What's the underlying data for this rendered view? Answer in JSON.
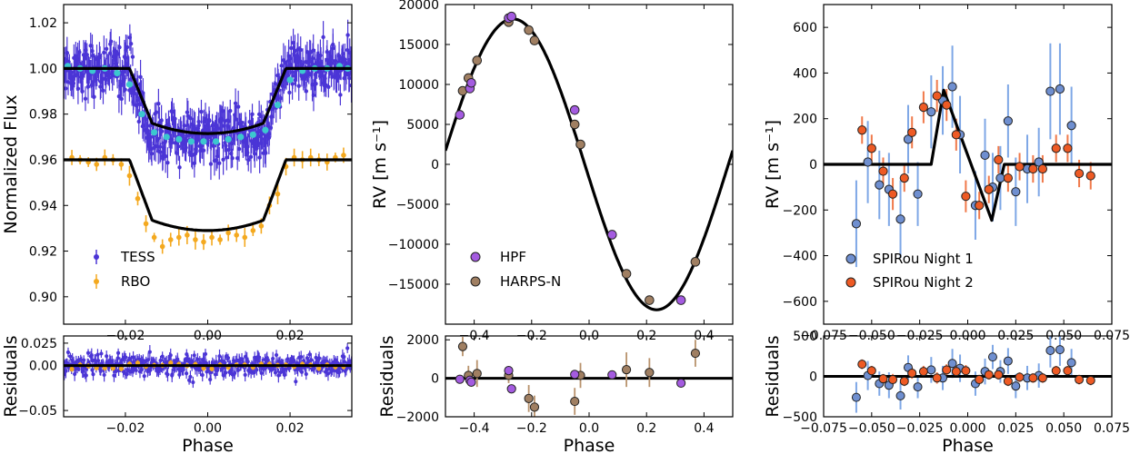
{
  "colors": {
    "tess": "#4b35d6",
    "tess_binned": "#3cc7cf",
    "rbo": "#f4a91f",
    "hpf": "#a45be0",
    "harps": "#a07f62",
    "harps_err": "#b8926c",
    "spirou1": "#6f8fd0",
    "spirou1_err": "#7ea7e6",
    "spirou2": "#ee5a24",
    "spirou2_err": "#f0794a",
    "model": "#000000"
  },
  "chart_data": [
    {
      "id": "transit",
      "type": "scatter",
      "xlabel": "Phase",
      "ylabel": "Normalized Flux",
      "xlim": [
        -0.035,
        0.035
      ],
      "ylim": [
        0.888,
        1.028
      ],
      "xticks": [
        -0.02,
        0.0,
        0.02
      ],
      "xtick_labels": [
        "−0.02",
        "0.00",
        "0.02"
      ],
      "yticks": [
        0.9,
        0.92,
        0.94,
        0.96,
        0.98,
        1.0,
        1.02
      ],
      "ytick_labels": [
        "0.90",
        "0.92",
        "0.94",
        "0.96",
        "0.98",
        "1.00",
        "1.02"
      ],
      "transit_model": {
        "t_out": 0.019,
        "t_in": 0.0135
      },
      "series": [
        {
          "name": "TESS",
          "baseline": 1.0,
          "depth": 0.032
        },
        {
          "name": "RBO",
          "baseline": 0.96,
          "depth": 0.035
        }
      ],
      "tess_binned": {
        "x": [
          -0.034,
          -0.031,
          -0.028,
          -0.025,
          -0.022,
          -0.019,
          -0.016,
          -0.013,
          -0.01,
          -0.007,
          -0.004,
          -0.001,
          0.002,
          0.005,
          0.008,
          0.011,
          0.014,
          0.017,
          0.02,
          0.023,
          0.026,
          0.029,
          0.032,
          0.034
        ],
        "y": [
          1.001,
          1.0,
          0.999,
          1.0,
          0.998,
          0.993,
          0.98,
          0.972,
          0.97,
          0.969,
          0.968,
          0.968,
          0.968,
          0.969,
          0.97,
          0.971,
          0.973,
          0.984,
          0.995,
          0.999,
          1.0,
          1.0,
          1.001,
          1.0
        ]
      },
      "rbo_points": {
        "x": [
          -0.033,
          -0.031,
          -0.029,
          -0.027,
          -0.025,
          -0.023,
          -0.021,
          -0.019,
          -0.017,
          -0.015,
          -0.013,
          -0.011,
          -0.009,
          -0.007,
          -0.005,
          -0.003,
          -0.001,
          0.001,
          0.003,
          0.005,
          0.007,
          0.009,
          0.011,
          0.013,
          0.015,
          0.017,
          0.019,
          0.021,
          0.023,
          0.025,
          0.027,
          0.029,
          0.031,
          0.033
        ],
        "y": [
          0.961,
          0.96,
          0.959,
          0.958,
          0.961,
          0.96,
          0.958,
          0.953,
          0.943,
          0.932,
          0.926,
          0.922,
          0.925,
          0.926,
          0.927,
          0.925,
          0.924,
          0.926,
          0.925,
          0.928,
          0.927,
          0.926,
          0.929,
          0.931,
          0.94,
          0.945,
          0.957,
          0.961,
          0.96,
          0.961,
          0.96,
          0.959,
          0.961,
          0.962
        ]
      },
      "legend": [
        "TESS",
        "RBO"
      ]
    },
    {
      "id": "transit_residuals",
      "type": "scatter",
      "xlabel": "Phase",
      "ylabel": "Residuals",
      "xlim": [
        -0.035,
        0.035
      ],
      "ylim": [
        -0.057,
        0.033
      ],
      "xticks": [
        -0.02,
        0.0,
        0.02
      ],
      "xtick_labels": [
        "−0.02",
        "0.00",
        "0.02"
      ],
      "yticks": [
        -0.05,
        0.0,
        0.025
      ],
      "ytick_labels": [
        "−0.05",
        "0.00",
        "0.025"
      ]
    },
    {
      "id": "rv_orbit",
      "type": "scatter",
      "xlabel": "Phase",
      "ylabel": "RV [m s⁻¹]",
      "xlim": [
        -0.5,
        0.5
      ],
      "ylim": [
        -20000,
        20000
      ],
      "xticks": [
        -0.4,
        -0.2,
        0.0,
        0.2,
        0.4
      ],
      "xtick_labels": [
        "−0.4",
        "−0.2",
        "0.0",
        "0.2",
        "0.4"
      ],
      "yticks": [
        -15000,
        -10000,
        -5000,
        0,
        5000,
        10000,
        15000,
        20000
      ],
      "ytick_labels": [
        "−15000",
        "−10000",
        "−5000",
        "0",
        "5000",
        "10000",
        "15000",
        "20000"
      ],
      "model": {
        "K": 18200,
        "phase_peak": -0.265
      },
      "series": [
        {
          "name": "HPF",
          "x": [
            -0.45,
            -0.415,
            -0.41,
            -0.28,
            -0.27,
            -0.05,
            0.08,
            0.32
          ],
          "y": [
            6200,
            9500,
            10200,
            18300,
            18500,
            6800,
            -8800,
            -17000
          ]
        },
        {
          "name": "HARPS-N",
          "x": [
            -0.44,
            -0.42,
            -0.39,
            -0.28,
            -0.21,
            -0.19,
            -0.05,
            -0.03,
            0.13,
            0.21,
            0.37
          ],
          "y": [
            9200,
            10800,
            13000,
            17800,
            16800,
            15500,
            5000,
            2500,
            -13700,
            -17000,
            -12200
          ]
        }
      ],
      "legend": [
        "HPF",
        "HARPS-N"
      ]
    },
    {
      "id": "rv_residuals",
      "type": "scatter",
      "xlabel": "Phase",
      "ylabel": "Residuals",
      "xlim": [
        -0.5,
        0.5
      ],
      "ylim": [
        -2000,
        2200
      ],
      "xticks": [
        -0.4,
        -0.2,
        0.0,
        0.2,
        0.4
      ],
      "xtick_labels": [
        "−0.4",
        "−0.2",
        "0.0",
        "0.2",
        "0.4"
      ],
      "yticks": [
        -2000,
        0,
        2000
      ],
      "ytick_labels": [
        "−2000",
        "0",
        "2000"
      ],
      "series": [
        {
          "name": "HPF",
          "x": [
            -0.45,
            -0.415,
            -0.41,
            -0.28,
            -0.27,
            -0.05,
            0.08,
            0.32
          ],
          "y": [
            -50,
            -100,
            -200,
            400,
            -550,
            200,
            180,
            -250
          ]
        },
        {
          "name": "HARPS-N",
          "x": [
            -0.44,
            -0.42,
            -0.39,
            -0.28,
            -0.21,
            -0.19,
            -0.05,
            -0.03,
            0.13,
            0.21,
            0.37
          ],
          "y": [
            1650,
            150,
            250,
            150,
            -1050,
            -1500,
            -1200,
            150,
            450,
            300,
            1300
          ],
          "err": [
            500,
            500,
            700,
            400,
            700,
            600,
            700,
            650,
            900,
            750,
            700
          ]
        }
      ]
    },
    {
      "id": "rm_effect",
      "type": "scatter",
      "xlabel": "Phase",
      "ylabel": "RV [m s⁻¹]",
      "xlim": [
        -0.075,
        0.075
      ],
      "ylim": [
        -700,
        700
      ],
      "xticks": [
        -0.075,
        -0.05,
        -0.025,
        0.0,
        0.025,
        0.05,
        0.075
      ],
      "xtick_labels": [
        "−0.075",
        "−0.050",
        "−0.025",
        "0.000",
        "0.025",
        "0.050",
        "0.075"
      ],
      "yticks": [
        -600,
        -400,
        -200,
        0,
        200,
        400,
        600
      ],
      "ytick_labels": [
        "−600",
        "−400",
        "−200",
        "0",
        "200",
        "400",
        "600"
      ],
      "model_x": [
        -0.075,
        -0.019,
        -0.0125,
        0.0125,
        0.019,
        0.075
      ],
      "model_y": [
        0,
        0,
        325,
        -245,
        0,
        0
      ],
      "series": [
        {
          "name": "SPIRou Night 1",
          "x": [
            -0.058,
            -0.052,
            -0.046,
            -0.041,
            -0.035,
            -0.031,
            -0.026,
            -0.019,
            -0.013,
            -0.008,
            -0.004,
            0.004,
            0.009,
            0.013,
            0.017,
            0.021,
            0.025,
            0.031,
            0.037,
            0.043,
            0.048,
            0.054
          ],
          "y": [
            -260,
            10,
            -90,
            -110,
            -240,
            110,
            -130,
            230,
            280,
            340,
            130,
            -180,
            40,
            -100,
            -60,
            190,
            -120,
            -20,
            10,
            320,
            330,
            170
          ],
          "err": [
            190,
            180,
            150,
            160,
            170,
            150,
            140,
            160,
            150,
            180,
            170,
            150,
            160,
            150,
            140,
            160,
            150,
            150,
            150,
            210,
            200,
            170
          ]
        },
        {
          "name": "SPIRou Night 2",
          "x": [
            -0.055,
            -0.05,
            -0.044,
            -0.039,
            -0.033,
            -0.029,
            -0.023,
            -0.016,
            -0.011,
            -0.006,
            -0.001,
            0.006,
            0.011,
            0.016,
            0.021,
            0.027,
            0.034,
            0.039,
            0.046,
            0.052,
            0.058,
            0.064
          ],
          "y": [
            150,
            70,
            -30,
            -130,
            -60,
            140,
            250,
            300,
            260,
            130,
            -140,
            -180,
            -110,
            20,
            -60,
            -10,
            -20,
            -20,
            70,
            70,
            -40,
            -50
          ],
          "err": [
            60,
            60,
            60,
            70,
            60,
            70,
            70,
            70,
            70,
            70,
            70,
            60,
            60,
            60,
            60,
            60,
            60,
            60,
            60,
            60,
            60,
            60
          ]
        }
      ],
      "legend": [
        "SPIRou Night 1",
        "SPIRou Night 2"
      ]
    },
    {
      "id": "rm_residuals",
      "type": "scatter",
      "xlabel": "Phase",
      "ylabel": "Residuals",
      "xlim": [
        -0.075,
        0.075
      ],
      "ylim": [
        -500,
        500
      ],
      "xticks": [
        -0.075,
        -0.05,
        -0.025,
        0.0,
        0.025,
        0.05,
        0.075
      ],
      "xtick_labels": [
        "−0.075",
        "−0.050",
        "−0.025",
        "0.000",
        "0.025",
        "0.050",
        "0.075"
      ],
      "yticks": [
        -500,
        0,
        500
      ],
      "ytick_labels": [
        "−500",
        "0",
        "500"
      ],
      "series": [
        {
          "name": "SPIRou Night 1",
          "x": [
            -0.058,
            -0.052,
            -0.046,
            -0.041,
            -0.035,
            -0.031,
            -0.026,
            -0.019,
            -0.013,
            -0.008,
            -0.004,
            0.004,
            0.009,
            0.013,
            0.017,
            0.021,
            0.025,
            0.031,
            0.037,
            0.043,
            0.048,
            0.054
          ],
          "y": [
            -260,
            10,
            -90,
            -110,
            -240,
            110,
            -130,
            80,
            -20,
            160,
            100,
            -90,
            60,
            240,
            60,
            190,
            -120,
            -20,
            10,
            320,
            330,
            170
          ],
          "err": [
            190,
            180,
            150,
            160,
            170,
            150,
            140,
            160,
            150,
            180,
            170,
            150,
            160,
            150,
            140,
            160,
            150,
            150,
            150,
            210,
            200,
            170
          ]
        },
        {
          "name": "SPIRou Night 2",
          "x": [
            -0.055,
            -0.05,
            -0.044,
            -0.039,
            -0.033,
            -0.029,
            -0.023,
            -0.016,
            -0.011,
            -0.006,
            -0.001,
            0.006,
            0.011,
            0.016,
            0.021,
            0.027,
            0.034,
            0.039,
            0.046,
            0.052,
            0.058,
            0.064
          ],
          "y": [
            150,
            70,
            -30,
            -40,
            -60,
            40,
            60,
            -20,
            80,
            60,
            70,
            -40,
            20,
            20,
            -60,
            -10,
            -20,
            -20,
            70,
            70,
            -40,
            -50
          ],
          "err": [
            60,
            60,
            60,
            70,
            60,
            70,
            70,
            70,
            70,
            70,
            70,
            60,
            60,
            60,
            60,
            60,
            60,
            60,
            60,
            60,
            60,
            60
          ]
        }
      ]
    }
  ]
}
